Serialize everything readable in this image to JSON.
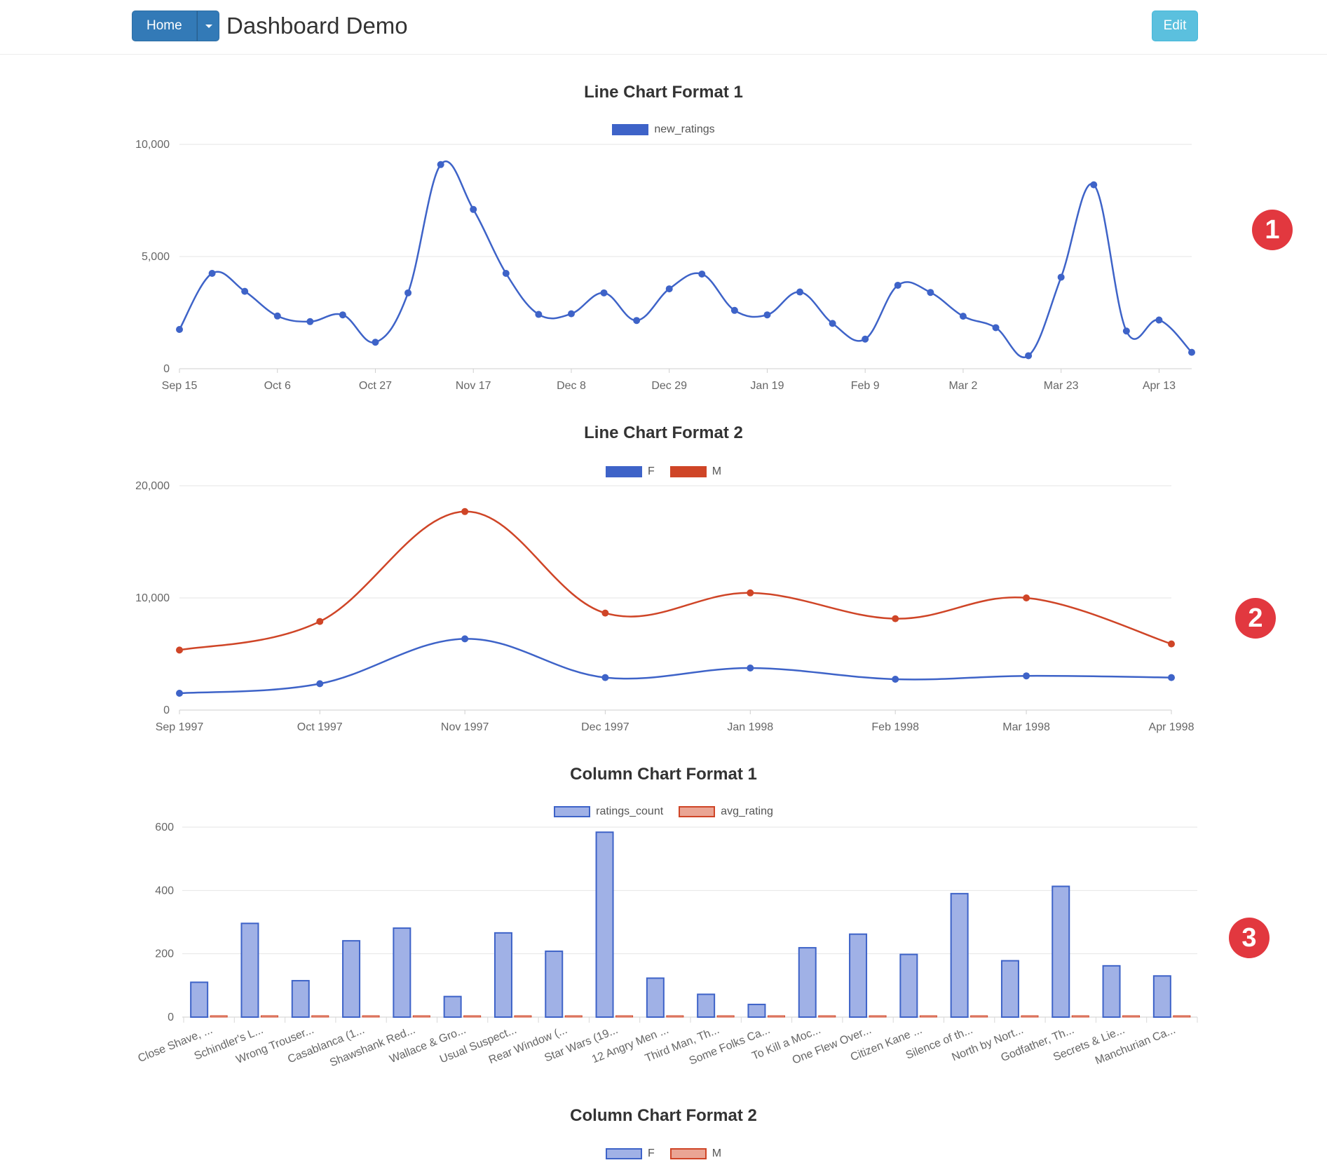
{
  "nav": {
    "home_label": "Home",
    "title": "Dashboard Demo",
    "edit_label": "Edit"
  },
  "badges": [
    "1",
    "2",
    "3"
  ],
  "colors": {
    "blue": "#3e63c8",
    "red": "#cf4527",
    "blue_fill": "#a0b1e6",
    "red_fill": "#eaa594"
  },
  "charts": {
    "line1": {
      "title": "Line Chart Format 1",
      "legend": [
        "new_ratings"
      ]
    },
    "line2": {
      "title": "Line Chart Format 2",
      "legend": [
        "F",
        "M"
      ]
    },
    "col1": {
      "title": "Column Chart Format 1",
      "legend": [
        "ratings_count",
        "avg_rating"
      ]
    },
    "col2": {
      "title": "Column Chart Format 2",
      "legend": [
        "F",
        "M"
      ]
    }
  },
  "chart_data": [
    {
      "type": "line",
      "title": "Line Chart Format 1",
      "ylim": [
        0,
        10000
      ],
      "yticks": [
        "10,000",
        "5,000",
        "0"
      ],
      "xticks": [
        "Sep 15",
        "Oct 6",
        "Oct 27",
        "Nov 17",
        "Dec 8",
        "Dec 29",
        "Jan 19",
        "Feb 9",
        "Mar 2",
        "Mar 23",
        "Apr 13"
      ],
      "series": [
        {
          "name": "new_ratings",
          "color": "#3e63c8",
          "values": [
            1750,
            4250,
            3450,
            2350,
            2100,
            2400,
            1180,
            3380,
            9100,
            7100,
            4250,
            2420,
            2450,
            3380,
            2150,
            3560,
            4220,
            2600,
            2400,
            3420,
            2020,
            1320,
            3720,
            3400,
            2340,
            1830,
            580,
            4080,
            8200,
            1680,
            2170,
            730
          ]
        }
      ]
    },
    {
      "type": "line",
      "title": "Line Chart Format 2",
      "ylim": [
        0,
        20000
      ],
      "yticks": [
        "20,000",
        "10,000",
        "0"
      ],
      "xticks": [
        "Sep 1997",
        "Oct 1997",
        "Nov 1997",
        "Dec 1997",
        "Jan 1998",
        "Feb 1998",
        "Mar 1998",
        "Apr 1998"
      ],
      "series": [
        {
          "name": "F",
          "color": "#3e63c8",
          "values": [
            1500,
            2350,
            6350,
            2900,
            3750,
            2750,
            3050,
            2900
          ]
        },
        {
          "name": "M",
          "color": "#cf4527",
          "values": [
            5350,
            7900,
            17700,
            8650,
            10450,
            8150,
            10000,
            5900
          ]
        }
      ]
    },
    {
      "type": "bar",
      "title": "Column Chart Format 1",
      "ylim": [
        0,
        600
      ],
      "yticks": [
        "600",
        "400",
        "200",
        "0"
      ],
      "categories": [
        "Close Shave, ...",
        "Schindler's L...",
        "Wrong Trouser...",
        "Casablanca (1...",
        "Shawshank Red...",
        "Wallace & Gro...",
        "Usual Suspect...",
        "Rear Window (...",
        "Star Wars (19...",
        "12 Angry Men ...",
        "Third Man, Th...",
        "Some Folks Ca...",
        "To Kill a Moc...",
        "One Flew Over...",
        "Citizen Kane ...",
        "Silence of th...",
        "North by Nort...",
        "Godfather, Th...",
        "Secrets & Lie...",
        "Manchurian Ca..."
      ],
      "series": [
        {
          "name": "ratings_count",
          "values": [
            110,
            296,
            115,
            241,
            281,
            65,
            266,
            208,
            584,
            123,
            72,
            40,
            219,
            262,
            198,
            390,
            178,
            413,
            162,
            130
          ]
        },
        {
          "name": "avg_rating",
          "values": [
            4.5,
            4.5,
            4.5,
            4.4,
            4.4,
            4.4,
            4.4,
            4.4,
            4.4,
            4.3,
            4.3,
            4.3,
            4.3,
            4.3,
            4.3,
            4.3,
            4.3,
            4.3,
            4.3,
            4.3
          ]
        }
      ]
    }
  ]
}
